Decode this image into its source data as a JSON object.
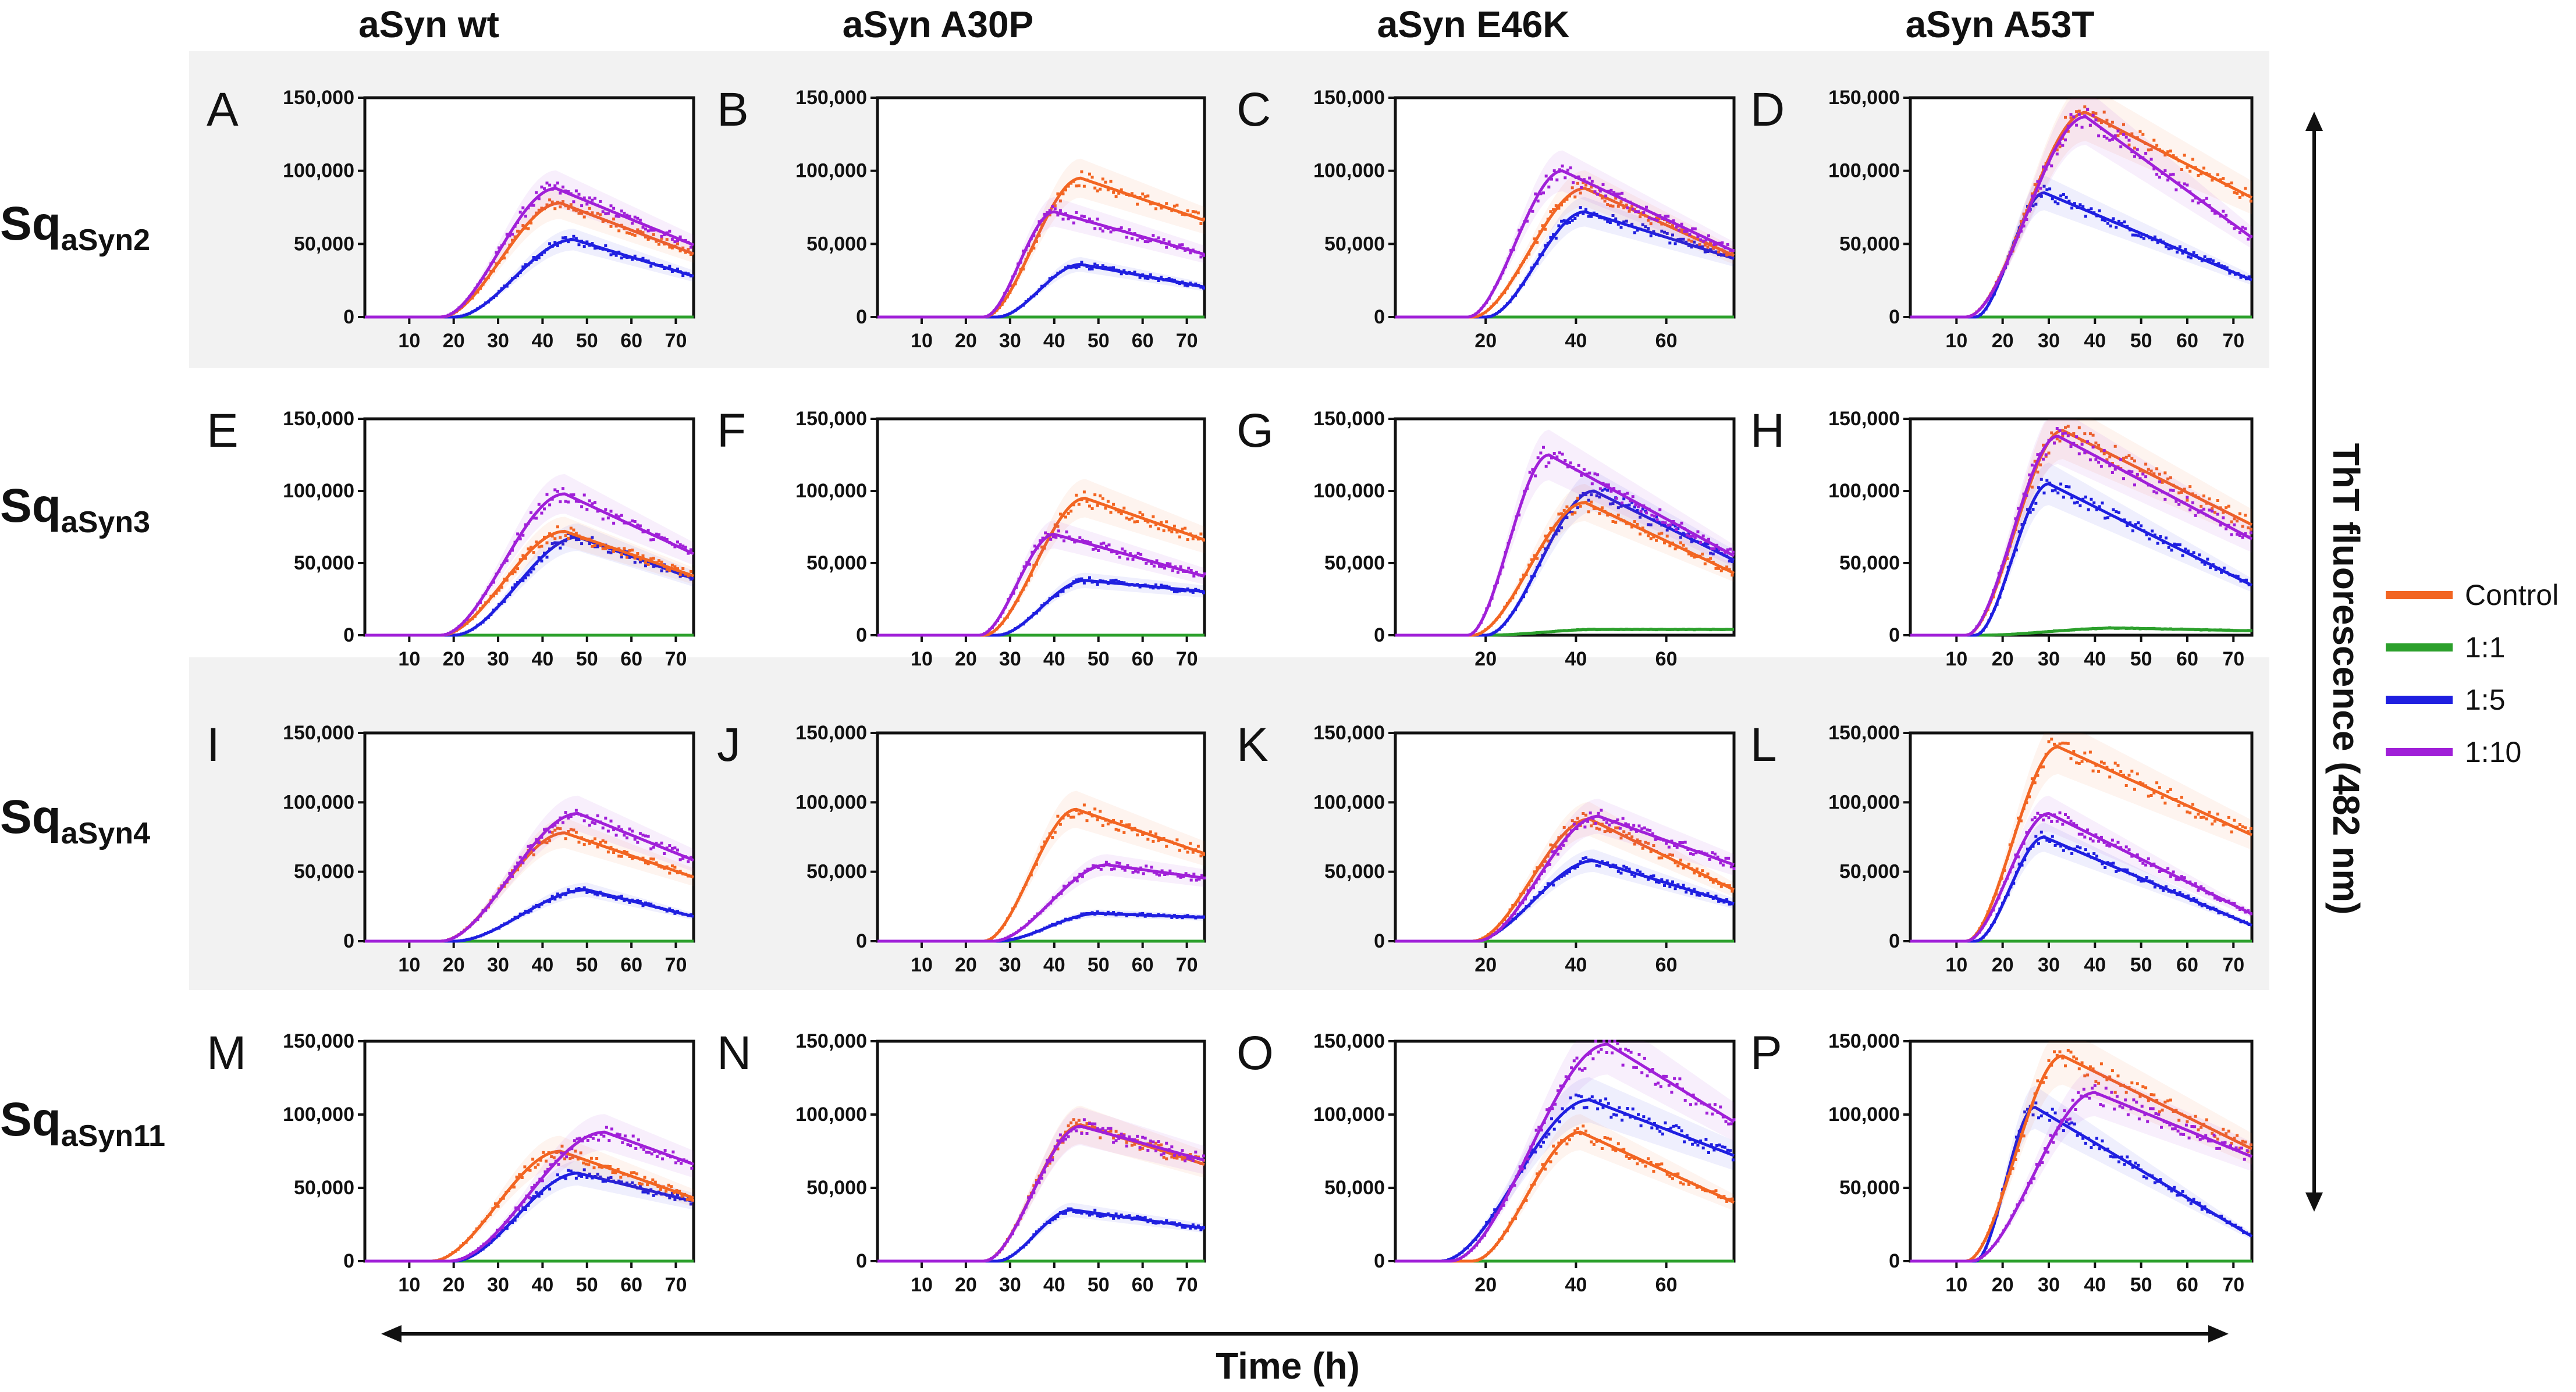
{
  "figure": {
    "column_titles": [
      "aSyn wt",
      "aSyn A30P",
      "aSyn E46K",
      "aSyn A53T"
    ],
    "row_titles": [
      {
        "main": "Sq",
        "sub": "aSyn2"
      },
      {
        "main": "Sq",
        "sub": "aSyn3"
      },
      {
        "main": "Sq",
        "sub": "aSyn4"
      },
      {
        "main": "Sq",
        "sub": "aSyn11"
      }
    ],
    "x_axis_title": "Time (h)",
    "y_axis_title": "ThT fluorescence (482 nm)",
    "legend": [
      {
        "label": "Control",
        "color": "#f26522"
      },
      {
        "label": "1:1",
        "color": "#2ca02c"
      },
      {
        "label": "1:5",
        "color": "#1f1fe0"
      },
      {
        "label": "1:10",
        "color": "#a020d8"
      }
    ],
    "band_color": "#f2f2f2"
  },
  "chart_data": [
    {
      "panel": "A",
      "type": "scatter",
      "ylim": [
        0,
        150000
      ],
      "xlim": [
        0,
        74
      ],
      "xticks": [
        10,
        20,
        30,
        40,
        50,
        60,
        70
      ],
      "yticks": [
        0,
        50000,
        100000,
        150000
      ],
      "ytick_labels": [
        "0",
        "50,000",
        "100,000",
        "150,000"
      ],
      "series": [
        {
          "name": "Control",
          "onset": 17,
          "peak": 78000,
          "tpeak": 44,
          "end": 42000
        },
        {
          "name": "1:1",
          "onset": 0,
          "peak": 0,
          "tpeak": 40,
          "end": 0
        },
        {
          "name": "1:5",
          "onset": 20,
          "peak": 53000,
          "tpeak": 47,
          "end": 27000
        },
        {
          "name": "1:10",
          "onset": 17,
          "peak": 88000,
          "tpeak": 43,
          "end": 48000
        }
      ]
    },
    {
      "panel": "B",
      "type": "scatter",
      "ylim": [
        0,
        150000
      ],
      "xlim": [
        0,
        74
      ],
      "xticks": [
        10,
        20,
        30,
        40,
        50,
        60,
        70
      ],
      "yticks": [
        0,
        50000,
        100000,
        150000
      ],
      "ytick_labels": [
        "0",
        "50,000",
        "100,000",
        "150,000"
      ],
      "series": [
        {
          "name": "Control",
          "onset": 24,
          "peak": 95000,
          "tpeak": 46,
          "end": 65000
        },
        {
          "name": "1:1",
          "onset": 0,
          "peak": 0,
          "tpeak": 40,
          "end": 0
        },
        {
          "name": "1:5",
          "onset": 27,
          "peak": 36000,
          "tpeak": 46,
          "end": 20000
        },
        {
          "name": "1:10",
          "onset": 24,
          "peak": 72000,
          "tpeak": 40,
          "end": 42000
        }
      ]
    },
    {
      "panel": "C",
      "type": "scatter",
      "ylim": [
        0,
        150000
      ],
      "xlim": [
        0,
        75
      ],
      "xticks": [
        20,
        40,
        60
      ],
      "yticks": [
        0,
        50000,
        100000,
        150000
      ],
      "ytick_labels": [
        "0",
        "50,000",
        "100,000",
        "150,000"
      ],
      "series": [
        {
          "name": "Control",
          "onset": 17,
          "peak": 88000,
          "tpeak": 42,
          "end": 42000
        },
        {
          "name": "1:1",
          "onset": 0,
          "peak": 0,
          "tpeak": 40,
          "end": 0
        },
        {
          "name": "1:5",
          "onset": 20,
          "peak": 72000,
          "tpeak": 42,
          "end": 40000
        },
        {
          "name": "1:10",
          "onset": 16,
          "peak": 100000,
          "tpeak": 37,
          "end": 45000
        }
      ]
    },
    {
      "panel": "D",
      "type": "scatter",
      "ylim": [
        0,
        150000
      ],
      "xlim": [
        0,
        74
      ],
      "xticks": [
        10,
        20,
        30,
        40,
        50,
        60,
        70
      ],
      "yticks": [
        0,
        50000,
        100000,
        150000
      ],
      "ytick_labels": [
        "0",
        "50,000",
        "100,000",
        "150,000"
      ],
      "series": [
        {
          "name": "Control",
          "onset": 12,
          "peak": 140000,
          "tpeak": 38,
          "end": 80000
        },
        {
          "name": "1:1",
          "onset": 0,
          "peak": 0,
          "tpeak": 40,
          "end": 0
        },
        {
          "name": "1:5",
          "onset": 14,
          "peak": 85000,
          "tpeak": 29,
          "end": 24000
        },
        {
          "name": "1:10",
          "onset": 12,
          "peak": 137000,
          "tpeak": 38,
          "end": 52000
        }
      ]
    },
    {
      "panel": "E",
      "type": "scatter",
      "ylim": [
        0,
        150000
      ],
      "xlim": [
        0,
        74
      ],
      "xticks": [
        10,
        20,
        30,
        40,
        50,
        60,
        70
      ],
      "yticks": [
        0,
        50000,
        100000,
        150000
      ],
      "ytick_labels": [
        "0",
        "50,000",
        "100,000",
        "150,000"
      ],
      "series": [
        {
          "name": "Control",
          "onset": 17,
          "peak": 72000,
          "tpeak": 45,
          "end": 40000
        },
        {
          "name": "1:1",
          "onset": 0,
          "peak": 0,
          "tpeak": 40,
          "end": 0
        },
        {
          "name": "1:5",
          "onset": 20,
          "peak": 68000,
          "tpeak": 48,
          "end": 38000
        },
        {
          "name": "1:10",
          "onset": 17,
          "peak": 98000,
          "tpeak": 45,
          "end": 55000
        }
      ]
    },
    {
      "panel": "F",
      "type": "scatter",
      "ylim": [
        0,
        150000
      ],
      "xlim": [
        0,
        74
      ],
      "xticks": [
        10,
        20,
        30,
        40,
        50,
        60,
        70
      ],
      "yticks": [
        0,
        50000,
        100000,
        150000
      ],
      "ytick_labels": [
        "0",
        "50,000",
        "100,000",
        "150,000"
      ],
      "series": [
        {
          "name": "Control",
          "onset": 24,
          "peak": 95000,
          "tpeak": 47,
          "end": 65000
        },
        {
          "name": "1:1",
          "onset": 0,
          "peak": 0,
          "tpeak": 40,
          "end": 0
        },
        {
          "name": "1:5",
          "onset": 27,
          "peak": 38000,
          "tpeak": 47,
          "end": 30000
        },
        {
          "name": "1:10",
          "onset": 23,
          "peak": 70000,
          "tpeak": 40,
          "end": 40000
        }
      ]
    },
    {
      "panel": "G",
      "type": "scatter",
      "ylim": [
        0,
        150000
      ],
      "xlim": [
        0,
        75
      ],
      "xticks": [
        20,
        40,
        60
      ],
      "yticks": [
        0,
        50000,
        100000,
        150000
      ],
      "ytick_labels": [
        "0",
        "50,000",
        "100,000",
        "150,000"
      ],
      "series": [
        {
          "name": "Control",
          "onset": 17,
          "peak": 92000,
          "tpeak": 42,
          "end": 43000
        },
        {
          "name": "1:1",
          "onset": 20,
          "peak": 4000,
          "tpeak": 45,
          "end": 4000
        },
        {
          "name": "1:5",
          "onset": 20,
          "peak": 100000,
          "tpeak": 44,
          "end": 52000
        },
        {
          "name": "1:10",
          "onset": 16,
          "peak": 125000,
          "tpeak": 34,
          "end": 55000
        }
      ]
    },
    {
      "panel": "H",
      "type": "scatter",
      "ylim": [
        0,
        150000
      ],
      "xlim": [
        0,
        74
      ],
      "xticks": [
        10,
        20,
        30,
        40,
        50,
        60,
        70
      ],
      "yticks": [
        0,
        50000,
        100000,
        150000
      ],
      "ytick_labels": [
        "0",
        "50,000",
        "100,000",
        "150,000"
      ],
      "series": [
        {
          "name": "Control",
          "onset": 12,
          "peak": 142000,
          "tpeak": 33,
          "end": 75000
        },
        {
          "name": "1:1",
          "onset": 15,
          "peak": 5000,
          "tpeak": 45,
          "end": 3000
        },
        {
          "name": "1:5",
          "onset": 14,
          "peak": 105000,
          "tpeak": 30,
          "end": 33000
        },
        {
          "name": "1:10",
          "onset": 12,
          "peak": 138000,
          "tpeak": 32,
          "end": 65000
        }
      ]
    },
    {
      "panel": "I",
      "type": "scatter",
      "ylim": [
        0,
        150000
      ],
      "xlim": [
        0,
        74
      ],
      "xticks": [
        10,
        20,
        30,
        40,
        50,
        60,
        70
      ],
      "yticks": [
        0,
        50000,
        100000,
        150000
      ],
      "ytick_labels": [
        "0",
        "50,000",
        "100,000",
        "150,000"
      ],
      "series": [
        {
          "name": "Control",
          "onset": 17,
          "peak": 78000,
          "tpeak": 45,
          "end": 45000
        },
        {
          "name": "1:1",
          "onset": 0,
          "peak": 0,
          "tpeak": 40,
          "end": 0
        },
        {
          "name": "1:5",
          "onset": 20,
          "peak": 37000,
          "tpeak": 50,
          "end": 17000
        },
        {
          "name": "1:10",
          "onset": 17,
          "peak": 92000,
          "tpeak": 48,
          "end": 57000
        }
      ]
    },
    {
      "panel": "J",
      "type": "scatter",
      "ylim": [
        0,
        150000
      ],
      "xlim": [
        0,
        74
      ],
      "xticks": [
        10,
        20,
        30,
        40,
        50,
        60,
        70
      ],
      "yticks": [
        0,
        50000,
        100000,
        150000
      ],
      "ytick_labels": [
        "0",
        "50,000",
        "100,000",
        "150,000"
      ],
      "series": [
        {
          "name": "Control",
          "onset": 24,
          "peak": 95000,
          "tpeak": 45,
          "end": 62000
        },
        {
          "name": "1:1",
          "onset": 0,
          "peak": 0,
          "tpeak": 40,
          "end": 0
        },
        {
          "name": "1:5",
          "onset": 27,
          "peak": 20000,
          "tpeak": 50,
          "end": 17000
        },
        {
          "name": "1:10",
          "onset": 26,
          "peak": 55000,
          "tpeak": 52,
          "end": 45000
        }
      ]
    },
    {
      "panel": "K",
      "type": "scatter",
      "ylim": [
        0,
        150000
      ],
      "xlim": [
        0,
        75
      ],
      "xticks": [
        20,
        40,
        60
      ],
      "yticks": [
        0,
        50000,
        100000,
        150000
      ],
      "ytick_labels": [
        "0",
        "50,000",
        "100,000",
        "150,000"
      ],
      "series": [
        {
          "name": "Control",
          "onset": 17,
          "peak": 88000,
          "tpeak": 43,
          "end": 37000
        },
        {
          "name": "1:1",
          "onset": 0,
          "peak": 0,
          "tpeak": 40,
          "end": 0
        },
        {
          "name": "1:5",
          "onset": 17,
          "peak": 58000,
          "tpeak": 44,
          "end": 27000
        },
        {
          "name": "1:10",
          "onset": 18,
          "peak": 90000,
          "tpeak": 45,
          "end": 55000
        }
      ]
    },
    {
      "panel": "L",
      "type": "scatter",
      "ylim": [
        0,
        150000
      ],
      "xlim": [
        0,
        74
      ],
      "xticks": [
        10,
        20,
        30,
        40,
        50,
        60,
        70
      ],
      "yticks": [
        0,
        50000,
        100000,
        150000
      ],
      "ytick_labels": [
        "0",
        "50,000",
        "100,000",
        "150,000"
      ],
      "series": [
        {
          "name": "Control",
          "onset": 12,
          "peak": 140000,
          "tpeak": 32,
          "end": 75000
        },
        {
          "name": "1:1",
          "onset": 0,
          "peak": 0,
          "tpeak": 40,
          "end": 0
        },
        {
          "name": "1:5",
          "onset": 14,
          "peak": 75000,
          "tpeak": 29,
          "end": 10000
        },
        {
          "name": "1:10",
          "onset": 12,
          "peak": 92000,
          "tpeak": 30,
          "end": 18000
        }
      ]
    },
    {
      "panel": "M",
      "type": "scatter",
      "ylim": [
        0,
        150000
      ],
      "xlim": [
        0,
        74
      ],
      "xticks": [
        10,
        20,
        30,
        40,
        50,
        60,
        70
      ],
      "yticks": [
        0,
        50000,
        100000,
        150000
      ],
      "ytick_labels": [
        "0",
        "50,000",
        "100,000",
        "150,000"
      ],
      "series": [
        {
          "name": "Control",
          "onset": 15,
          "peak": 75000,
          "tpeak": 44,
          "end": 42000
        },
        {
          "name": "1:1",
          "onset": 0,
          "peak": 0,
          "tpeak": 40,
          "end": 0
        },
        {
          "name": "1:5",
          "onset": 20,
          "peak": 60000,
          "tpeak": 48,
          "end": 40000
        },
        {
          "name": "1:10",
          "onset": 19,
          "peak": 88000,
          "tpeak": 54,
          "end": 65000
        }
      ]
    },
    {
      "panel": "N",
      "type": "scatter",
      "ylim": [
        0,
        150000
      ],
      "xlim": [
        0,
        74
      ],
      "xticks": [
        10,
        20,
        30,
        40,
        50,
        60,
        70
      ],
      "yticks": [
        0,
        50000,
        100000,
        150000
      ],
      "ytick_labels": [
        "0",
        "50,000",
        "100,000",
        "150,000"
      ],
      "series": [
        {
          "name": "Control",
          "onset": 24,
          "peak": 93000,
          "tpeak": 46,
          "end": 65000
        },
        {
          "name": "1:1",
          "onset": 0,
          "peak": 0,
          "tpeak": 40,
          "end": 0
        },
        {
          "name": "1:5",
          "onset": 27,
          "peak": 35000,
          "tpeak": 44,
          "end": 22000
        },
        {
          "name": "1:10",
          "onset": 24,
          "peak": 92000,
          "tpeak": 46,
          "end": 68000
        }
      ]
    },
    {
      "panel": "O",
      "type": "scatter",
      "ylim": [
        0,
        150000
      ],
      "xlim": [
        0,
        75
      ],
      "xticks": [
        20,
        40,
        60
      ],
      "yticks": [
        0,
        50000,
        100000,
        150000
      ],
      "ytick_labels": [
        "0",
        "50,000",
        "100,000",
        "150,000"
      ],
      "series": [
        {
          "name": "Control",
          "onset": 17,
          "peak": 88000,
          "tpeak": 41,
          "end": 40000
        },
        {
          "name": "1:1",
          "onset": 0,
          "peak": 0,
          "tpeak": 40,
          "end": 0
        },
        {
          "name": "1:5",
          "onset": 10,
          "peak": 110000,
          "tpeak": 43,
          "end": 72000
        },
        {
          "name": "1:10",
          "onset": 12,
          "peak": 148000,
          "tpeak": 47,
          "end": 95000
        }
      ]
    },
    {
      "panel": "P",
      "type": "scatter",
      "ylim": [
        0,
        150000
      ],
      "xlim": [
        0,
        74
      ],
      "xticks": [
        10,
        20,
        30,
        40,
        50,
        60,
        70
      ],
      "yticks": [
        0,
        50000,
        100000,
        150000
      ],
      "ytick_labels": [
        "0",
        "50,000",
        "100,000",
        "150,000"
      ],
      "series": [
        {
          "name": "Control",
          "onset": 12,
          "peak": 140000,
          "tpeak": 33,
          "end": 75000
        },
        {
          "name": "1:1",
          "onset": 0,
          "peak": 0,
          "tpeak": 40,
          "end": 0
        },
        {
          "name": "1:5",
          "onset": 14,
          "peak": 105000,
          "tpeak": 27,
          "end": 15000
        },
        {
          "name": "1:10",
          "onset": 13,
          "peak": 115000,
          "tpeak": 40,
          "end": 70000
        }
      ]
    }
  ]
}
